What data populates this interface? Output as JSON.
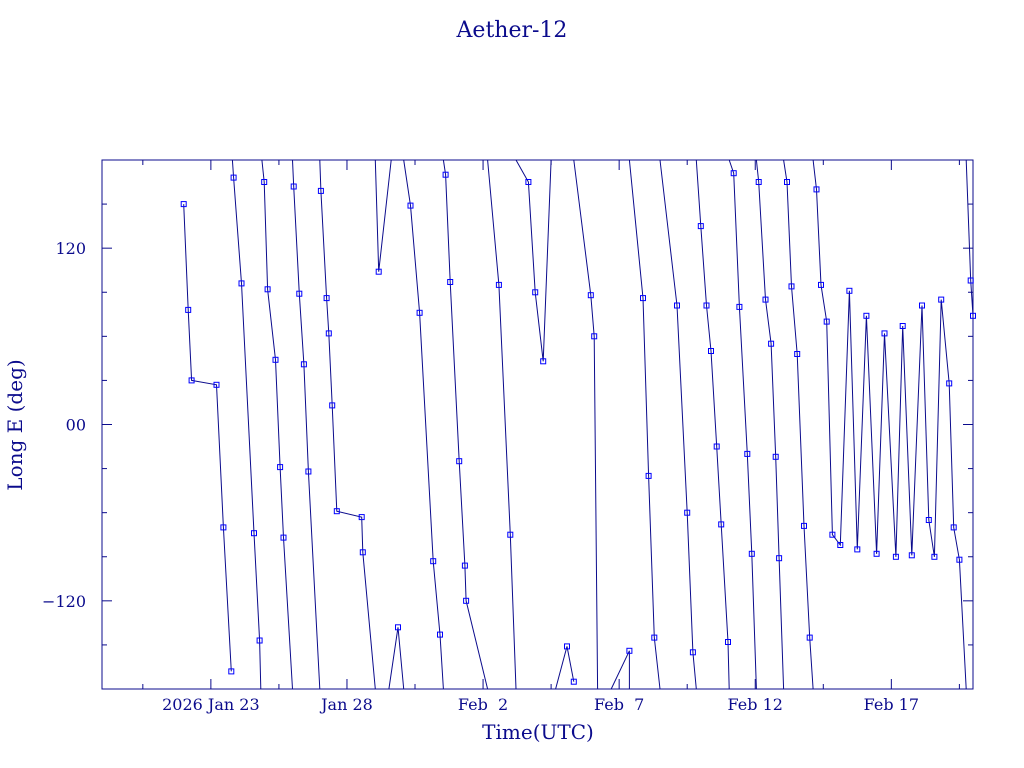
{
  "chart_data": {
    "type": "line",
    "title": "Aether-12",
    "xlabel": "Time(UTC)",
    "ylabel": "Long E (deg)",
    "x_unit": "date",
    "xlim": [
      "2026-01-19 00:00",
      "2026-02-20 00:00"
    ],
    "ylim": [
      -180,
      180
    ],
    "y_ticks": [
      -120,
      0,
      120
    ],
    "y_tick_labels": [
      "−120",
      "00",
      "120"
    ],
    "x_ticks": [
      "2026-01-23",
      "2026-01-28",
      "2026-02-02",
      "2026-02-07",
      "2026-02-12",
      "2026-02-17"
    ],
    "x_tick_labels": [
      "2026 Jan 23",
      "Jan 28",
      "Feb  2",
      "Feb  7",
      "Feb 12",
      "Feb 17"
    ],
    "grid": false,
    "legend": "none",
    "colors": {
      "line": "#0b0b8c",
      "marker": "#0000ff",
      "axes": "#0b0b8c"
    },
    "series": [
      {
        "values": [
          [
            "2026-01-22 00:00",
            150
          ],
          [
            "2026-01-22 04:00",
            78
          ],
          [
            "2026-01-22 07:00",
            30
          ],
          [
            "2026-01-23 05:00",
            27
          ],
          [
            "2026-01-23 11:00",
            -70
          ],
          [
            "2026-01-23 18:00",
            -168
          ],
          [
            "2026-01-23 19:00",
            180
          ],
          [
            "2026-01-23 20:00",
            168
          ],
          [
            "2026-01-24 03:00",
            96
          ],
          [
            "2026-01-24 14:00",
            -74
          ],
          [
            "2026-01-24 19:00",
            -147
          ],
          [
            "2026-01-24 20:00",
            -180
          ],
          [
            "2026-01-24 21:00",
            180
          ],
          [
            "2026-01-24 23:00",
            165
          ],
          [
            "2026-01-25 02:00",
            92
          ],
          [
            "2026-01-25 09:00",
            44
          ],
          [
            "2026-01-25 13:00",
            -29
          ],
          [
            "2026-01-25 16:00",
            -77
          ],
          [
            "2026-01-26 00:00",
            -180
          ],
          [
            "2026-01-26 00:00",
            180
          ],
          [
            "2026-01-26 01:00",
            162
          ],
          [
            "2026-01-26 06:00",
            89
          ],
          [
            "2026-01-26 10:00",
            41
          ],
          [
            "2026-01-26 14:00",
            -32
          ],
          [
            "2026-01-27 00:00",
            -180
          ],
          [
            "2026-01-27 00:00",
            180
          ],
          [
            "2026-01-27 01:00",
            159
          ],
          [
            "2026-01-27 06:00",
            86
          ],
          [
            "2026-01-27 08:00",
            62
          ],
          [
            "2026-01-27 11:00",
            13
          ],
          [
            "2026-01-27 15:00",
            -59
          ],
          [
            "2026-01-28 13:00",
            -63
          ],
          [
            "2026-01-28 14:00",
            -87
          ],
          [
            "2026-01-29 01:00",
            -180
          ],
          [
            "2026-01-29 01:00",
            180
          ],
          [
            "2026-01-29 04:00",
            104
          ],
          [
            "2026-01-29 15:00",
            180
          ],
          [
            "2026-01-29 13:00",
            -180
          ],
          [
            "2026-01-29 21:00",
            -138
          ],
          [
            "2026-01-30 02:00",
            -180
          ],
          [
            "2026-01-30 02:00",
            180
          ],
          [
            "2026-01-30 08:00",
            149
          ],
          [
            "2026-01-30 16:00",
            76
          ],
          [
            "2026-01-31 04:00",
            -93
          ],
          [
            "2026-01-31 10:00",
            -143
          ],
          [
            "2026-01-31 13:00",
            -180
          ],
          [
            "2026-01-31 13:00",
            180
          ],
          [
            "2026-01-31 15:00",
            170
          ],
          [
            "2026-01-31 19:00",
            97
          ],
          [
            "2026-02-01 03:00",
            -25
          ],
          [
            "2026-02-01 08:00",
            -96
          ],
          [
            "2026-02-01 09:00",
            -120
          ],
          [
            "2026-02-02 04:00",
            -180
          ],
          [
            "2026-02-02 04:00",
            180
          ],
          [
            "2026-02-02 14:00",
            95
          ],
          [
            "2026-02-03 00:00",
            -75
          ],
          [
            "2026-02-03 05:00",
            -180
          ],
          [
            "2026-02-03 05:00",
            180
          ],
          [
            "2026-02-03 16:00",
            165
          ],
          [
            "2026-02-03 22:00",
            90
          ],
          [
            "2026-02-04 05:00",
            43
          ],
          [
            "2026-02-04 12:00",
            180
          ],
          [
            "2026-02-04 16:00",
            -180
          ],
          [
            "2026-02-05 02:00",
            -151
          ],
          [
            "2026-02-05 08:00",
            -175
          ],
          [
            "2026-02-05 08:00",
            180
          ],
          [
            "2026-02-05 23:00",
            88
          ],
          [
            "2026-02-06 02:00",
            60
          ],
          [
            "2026-02-06 05:00",
            -180
          ],
          [
            "2026-02-06 05:00",
            180
          ],
          [
            "2026-02-06 17:00",
            180
          ],
          [
            "2026-02-06 17:00",
            -180
          ],
          [
            "2026-02-07 09:00",
            -154
          ],
          [
            "2026-02-07 09:00",
            -180
          ],
          [
            "2026-02-07 09:00",
            180
          ],
          [
            "2026-02-07 21:00",
            86
          ],
          [
            "2026-02-08 02:00",
            -35
          ],
          [
            "2026-02-08 07:00",
            -145
          ],
          [
            "2026-02-08 12:00",
            -180
          ],
          [
            "2026-02-08 12:00",
            180
          ],
          [
            "2026-02-09 03:00",
            81
          ],
          [
            "2026-02-09 12:00",
            -60
          ],
          [
            "2026-02-09 17:00",
            -155
          ],
          [
            "2026-02-09 20:00",
            -180
          ],
          [
            "2026-02-09 20:00",
            180
          ],
          [
            "2026-02-10 00:00",
            135
          ],
          [
            "2026-02-10 05:00",
            81
          ],
          [
            "2026-02-10 09:00",
            50
          ],
          [
            "2026-02-10 14:00",
            -15
          ],
          [
            "2026-02-10 18:00",
            -68
          ],
          [
            "2026-02-11 00:00",
            -148
          ],
          [
            "2026-02-11 01:00",
            -180
          ],
          [
            "2026-02-11 01:00",
            180
          ],
          [
            "2026-02-11 05:00",
            171
          ],
          [
            "2026-02-11 10:00",
            80
          ],
          [
            "2026-02-11 17:00",
            -20
          ],
          [
            "2026-02-11 21:00",
            -88
          ],
          [
            "2026-02-12 01:00",
            -180
          ],
          [
            "2026-02-12 01:00",
            180
          ],
          [
            "2026-02-12 03:00",
            165
          ],
          [
            "2026-02-12 09:00",
            85
          ],
          [
            "2026-02-12 14:00",
            55
          ],
          [
            "2026-02-12 18:00",
            -22
          ],
          [
            "2026-02-12 21:00",
            -91
          ],
          [
            "2026-02-13 01:00",
            -180
          ],
          [
            "2026-02-13 01:00",
            180
          ],
          [
            "2026-02-13 04:00",
            165
          ],
          [
            "2026-02-13 08:00",
            94
          ],
          [
            "2026-02-13 13:00",
            48
          ],
          [
            "2026-02-13 19:00",
            -69
          ],
          [
            "2026-02-14 00:00",
            -145
          ],
          [
            "2026-02-14 03:00",
            -180
          ],
          [
            "2026-02-14 03:00",
            180
          ],
          [
            "2026-02-14 06:00",
            160
          ],
          [
            "2026-02-14 10:00",
            95
          ],
          [
            "2026-02-14 15:00",
            70
          ],
          [
            "2026-02-14 20:00",
            -75
          ],
          [
            "2026-02-15 03:00",
            -82
          ],
          [
            "2026-02-15 11:00",
            91
          ],
          [
            "2026-02-15 18:00",
            -85
          ],
          [
            "2026-02-16 02:00",
            74
          ],
          [
            "2026-02-16 11:00",
            -88
          ],
          [
            "2026-02-16 18:00",
            62
          ],
          [
            "2026-02-17 04:00",
            -90
          ],
          [
            "2026-02-17 10:00",
            67
          ],
          [
            "2026-02-17 18:00",
            -89
          ],
          [
            "2026-02-18 03:00",
            81
          ],
          [
            "2026-02-18 09:00",
            -65
          ],
          [
            "2026-02-18 14:00",
            -90
          ],
          [
            "2026-02-18 20:00",
            85
          ],
          [
            "2026-02-19 03:00",
            28
          ],
          [
            "2026-02-19 07:00",
            -70
          ],
          [
            "2026-02-19 12:00",
            -92
          ],
          [
            "2026-02-19 18:00",
            -180
          ],
          [
            "2026-02-19 18:00",
            180
          ],
          [
            "2026-02-19 22:00",
            98
          ],
          [
            "2026-02-20 00:00",
            74
          ]
        ]
      }
    ]
  }
}
